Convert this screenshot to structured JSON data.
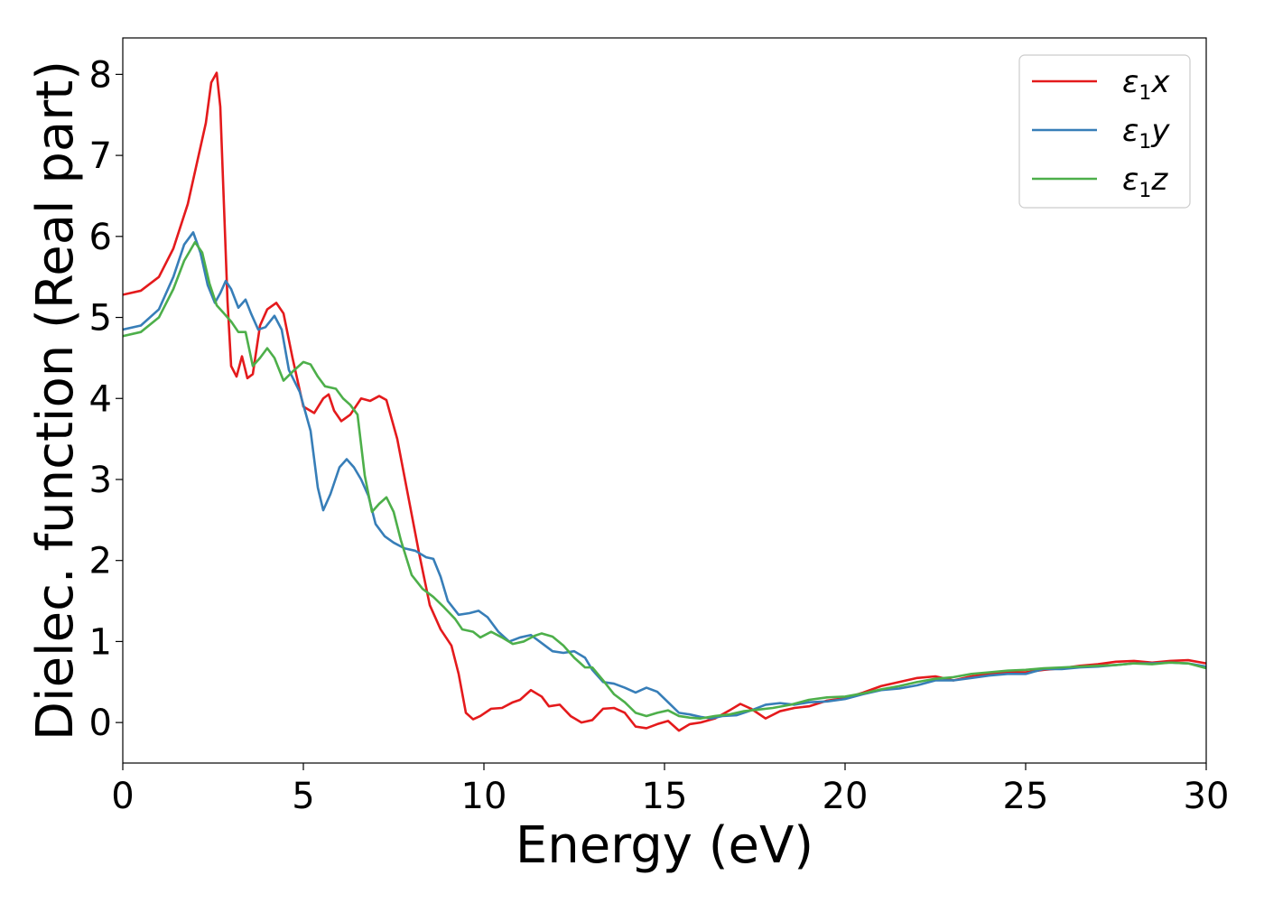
{
  "chart_data": {
    "type": "line",
    "xlabel": "Energy (eV)",
    "ylabel": "Dielec. function (Real part)",
    "xlim": [
      0,
      30
    ],
    "ylim": [
      -0.5,
      8.45
    ],
    "xticks": [
      0,
      5,
      10,
      15,
      20,
      25,
      30
    ],
    "yticks": [
      0,
      1,
      2,
      3,
      4,
      5,
      6,
      7,
      8
    ],
    "grid": false,
    "legend": {
      "placement": "top-right"
    },
    "series": [
      {
        "name": "ε1x",
        "legend_symbol": "ε",
        "legend_sub": "1",
        "legend_var": "x",
        "color": "#e41a1c",
        "points": [
          [
            0,
            5.28
          ],
          [
            0.5,
            5.33
          ],
          [
            1.0,
            5.5
          ],
          [
            1.4,
            5.85
          ],
          [
            1.8,
            6.4
          ],
          [
            2.1,
            7.0
          ],
          [
            2.3,
            7.4
          ],
          [
            2.45,
            7.9
          ],
          [
            2.6,
            8.02
          ],
          [
            2.7,
            7.6
          ],
          [
            2.8,
            6.4
          ],
          [
            2.9,
            5.2
          ],
          [
            3.0,
            4.4
          ],
          [
            3.15,
            4.27
          ],
          [
            3.3,
            4.52
          ],
          [
            3.45,
            4.25
          ],
          [
            3.6,
            4.3
          ],
          [
            3.8,
            4.9
          ],
          [
            4.0,
            5.1
          ],
          [
            4.25,
            5.18
          ],
          [
            4.45,
            5.05
          ],
          [
            4.7,
            4.5
          ],
          [
            5.0,
            3.9
          ],
          [
            5.3,
            3.82
          ],
          [
            5.55,
            4.0
          ],
          [
            5.7,
            4.05
          ],
          [
            5.85,
            3.85
          ],
          [
            6.05,
            3.72
          ],
          [
            6.3,
            3.8
          ],
          [
            6.6,
            4.0
          ],
          [
            6.85,
            3.97
          ],
          [
            7.1,
            4.03
          ],
          [
            7.3,
            3.98
          ],
          [
            7.6,
            3.5
          ],
          [
            7.9,
            2.8
          ],
          [
            8.2,
            2.1
          ],
          [
            8.5,
            1.45
          ],
          [
            8.8,
            1.15
          ],
          [
            9.1,
            0.95
          ],
          [
            9.3,
            0.6
          ],
          [
            9.5,
            0.12
          ],
          [
            9.7,
            0.04
          ],
          [
            9.9,
            0.08
          ],
          [
            10.2,
            0.17
          ],
          [
            10.5,
            0.18
          ],
          [
            10.8,
            0.25
          ],
          [
            11.0,
            0.28
          ],
          [
            11.3,
            0.4
          ],
          [
            11.6,
            0.32
          ],
          [
            11.8,
            0.2
          ],
          [
            12.1,
            0.22
          ],
          [
            12.4,
            0.08
          ],
          [
            12.7,
            0.0
          ],
          [
            13.0,
            0.03
          ],
          [
            13.3,
            0.17
          ],
          [
            13.6,
            0.18
          ],
          [
            13.9,
            0.12
          ],
          [
            14.2,
            -0.05
          ],
          [
            14.5,
            -0.07
          ],
          [
            14.8,
            -0.02
          ],
          [
            15.1,
            0.02
          ],
          [
            15.4,
            -0.1
          ],
          [
            15.7,
            -0.02
          ],
          [
            16.0,
            0.0
          ],
          [
            16.4,
            0.05
          ],
          [
            16.8,
            0.15
          ],
          [
            17.1,
            0.23
          ],
          [
            17.4,
            0.17
          ],
          [
            17.8,
            0.05
          ],
          [
            18.2,
            0.14
          ],
          [
            18.6,
            0.18
          ],
          [
            19.0,
            0.2
          ],
          [
            19.5,
            0.27
          ],
          [
            20.0,
            0.3
          ],
          [
            20.5,
            0.37
          ],
          [
            21.0,
            0.45
          ],
          [
            21.5,
            0.5
          ],
          [
            22.0,
            0.55
          ],
          [
            22.5,
            0.57
          ],
          [
            23.0,
            0.52
          ],
          [
            23.5,
            0.57
          ],
          [
            24.0,
            0.6
          ],
          [
            24.5,
            0.62
          ],
          [
            25.0,
            0.62
          ],
          [
            25.5,
            0.65
          ],
          [
            26.0,
            0.67
          ],
          [
            26.5,
            0.7
          ],
          [
            27.0,
            0.72
          ],
          [
            27.5,
            0.75
          ],
          [
            28.0,
            0.76
          ],
          [
            28.5,
            0.74
          ],
          [
            29.0,
            0.76
          ],
          [
            29.5,
            0.77
          ],
          [
            30.0,
            0.73
          ]
        ]
      },
      {
        "name": "ε1y",
        "legend_symbol": "ε",
        "legend_sub": "1",
        "legend_var": "y",
        "color": "#377eb8",
        "points": [
          [
            0,
            4.85
          ],
          [
            0.5,
            4.9
          ],
          [
            1.0,
            5.1
          ],
          [
            1.4,
            5.5
          ],
          [
            1.7,
            5.9
          ],
          [
            1.95,
            6.05
          ],
          [
            2.15,
            5.8
          ],
          [
            2.35,
            5.4
          ],
          [
            2.55,
            5.18
          ],
          [
            2.7,
            5.3
          ],
          [
            2.85,
            5.45
          ],
          [
            3.0,
            5.35
          ],
          [
            3.2,
            5.12
          ],
          [
            3.4,
            5.22
          ],
          [
            3.55,
            5.05
          ],
          [
            3.75,
            4.85
          ],
          [
            3.95,
            4.88
          ],
          [
            4.2,
            5.02
          ],
          [
            4.4,
            4.85
          ],
          [
            4.6,
            4.35
          ],
          [
            4.9,
            4.08
          ],
          [
            5.2,
            3.6
          ],
          [
            5.4,
            2.9
          ],
          [
            5.55,
            2.62
          ],
          [
            5.75,
            2.82
          ],
          [
            6.0,
            3.15
          ],
          [
            6.2,
            3.25
          ],
          [
            6.4,
            3.15
          ],
          [
            6.6,
            3.0
          ],
          [
            6.8,
            2.8
          ],
          [
            7.0,
            2.45
          ],
          [
            7.25,
            2.3
          ],
          [
            7.5,
            2.22
          ],
          [
            7.8,
            2.15
          ],
          [
            8.1,
            2.12
          ],
          [
            8.4,
            2.04
          ],
          [
            8.6,
            2.02
          ],
          [
            8.8,
            1.8
          ],
          [
            9.0,
            1.5
          ],
          [
            9.3,
            1.33
          ],
          [
            9.6,
            1.35
          ],
          [
            9.85,
            1.38
          ],
          [
            10.1,
            1.3
          ],
          [
            10.4,
            1.12
          ],
          [
            10.7,
            1.0
          ],
          [
            11.0,
            1.05
          ],
          [
            11.3,
            1.08
          ],
          [
            11.6,
            0.98
          ],
          [
            11.9,
            0.88
          ],
          [
            12.2,
            0.86
          ],
          [
            12.5,
            0.88
          ],
          [
            12.8,
            0.8
          ],
          [
            13.0,
            0.65
          ],
          [
            13.3,
            0.5
          ],
          [
            13.6,
            0.48
          ],
          [
            13.9,
            0.43
          ],
          [
            14.2,
            0.37
          ],
          [
            14.5,
            0.43
          ],
          [
            14.8,
            0.38
          ],
          [
            15.1,
            0.25
          ],
          [
            15.4,
            0.12
          ],
          [
            15.7,
            0.1
          ],
          [
            16.0,
            0.07
          ],
          [
            16.3,
            0.05
          ],
          [
            16.6,
            0.08
          ],
          [
            17.0,
            0.09
          ],
          [
            17.4,
            0.15
          ],
          [
            17.8,
            0.22
          ],
          [
            18.2,
            0.24
          ],
          [
            18.6,
            0.22
          ],
          [
            19.0,
            0.25
          ],
          [
            19.5,
            0.26
          ],
          [
            20.0,
            0.29
          ],
          [
            20.5,
            0.35
          ],
          [
            21.0,
            0.4
          ],
          [
            21.5,
            0.42
          ],
          [
            22.0,
            0.46
          ],
          [
            22.5,
            0.52
          ],
          [
            23.0,
            0.52
          ],
          [
            23.5,
            0.55
          ],
          [
            24.0,
            0.58
          ],
          [
            24.5,
            0.6
          ],
          [
            25.0,
            0.6
          ],
          [
            25.5,
            0.66
          ],
          [
            26.0,
            0.66
          ],
          [
            26.5,
            0.68
          ],
          [
            27.0,
            0.69
          ],
          [
            27.5,
            0.71
          ],
          [
            28.0,
            0.73
          ],
          [
            28.5,
            0.73
          ],
          [
            29.0,
            0.74
          ],
          [
            29.5,
            0.73
          ],
          [
            30.0,
            0.69
          ]
        ]
      },
      {
        "name": "ε1z",
        "legend_symbol": "ε",
        "legend_sub": "1",
        "legend_var": "z",
        "color": "#4daf4a",
        "points": [
          [
            0,
            4.77
          ],
          [
            0.5,
            4.82
          ],
          [
            1.0,
            5.0
          ],
          [
            1.4,
            5.35
          ],
          [
            1.7,
            5.7
          ],
          [
            2.0,
            5.93
          ],
          [
            2.2,
            5.8
          ],
          [
            2.4,
            5.42
          ],
          [
            2.6,
            5.15
          ],
          [
            2.8,
            5.05
          ],
          [
            3.0,
            4.95
          ],
          [
            3.2,
            4.82
          ],
          [
            3.4,
            4.82
          ],
          [
            3.6,
            4.4
          ],
          [
            3.8,
            4.5
          ],
          [
            4.0,
            4.62
          ],
          [
            4.2,
            4.5
          ],
          [
            4.45,
            4.22
          ],
          [
            4.7,
            4.33
          ],
          [
            5.0,
            4.45
          ],
          [
            5.2,
            4.42
          ],
          [
            5.4,
            4.27
          ],
          [
            5.6,
            4.15
          ],
          [
            5.9,
            4.12
          ],
          [
            6.1,
            4.0
          ],
          [
            6.3,
            3.92
          ],
          [
            6.5,
            3.8
          ],
          [
            6.7,
            3.05
          ],
          [
            6.9,
            2.6
          ],
          [
            7.1,
            2.7
          ],
          [
            7.3,
            2.78
          ],
          [
            7.5,
            2.6
          ],
          [
            7.7,
            2.25
          ],
          [
            8.0,
            1.82
          ],
          [
            8.3,
            1.65
          ],
          [
            8.6,
            1.55
          ],
          [
            8.9,
            1.42
          ],
          [
            9.2,
            1.28
          ],
          [
            9.4,
            1.15
          ],
          [
            9.7,
            1.12
          ],
          [
            9.9,
            1.05
          ],
          [
            10.2,
            1.12
          ],
          [
            10.5,
            1.05
          ],
          [
            10.8,
            0.97
          ],
          [
            11.1,
            1.0
          ],
          [
            11.4,
            1.07
          ],
          [
            11.6,
            1.1
          ],
          [
            11.9,
            1.06
          ],
          [
            12.2,
            0.95
          ],
          [
            12.5,
            0.8
          ],
          [
            12.8,
            0.68
          ],
          [
            13.0,
            0.68
          ],
          [
            13.3,
            0.52
          ],
          [
            13.6,
            0.35
          ],
          [
            13.9,
            0.25
          ],
          [
            14.2,
            0.12
          ],
          [
            14.5,
            0.08
          ],
          [
            14.8,
            0.12
          ],
          [
            15.1,
            0.15
          ],
          [
            15.4,
            0.08
          ],
          [
            15.7,
            0.06
          ],
          [
            16.0,
            0.05
          ],
          [
            16.4,
            0.08
          ],
          [
            16.8,
            0.1
          ],
          [
            17.2,
            0.14
          ],
          [
            17.6,
            0.16
          ],
          [
            18.0,
            0.18
          ],
          [
            18.5,
            0.22
          ],
          [
            19.0,
            0.28
          ],
          [
            19.5,
            0.31
          ],
          [
            20.0,
            0.32
          ],
          [
            20.5,
            0.36
          ],
          [
            21.0,
            0.41
          ],
          [
            21.5,
            0.45
          ],
          [
            22.0,
            0.5
          ],
          [
            22.5,
            0.54
          ],
          [
            23.0,
            0.56
          ],
          [
            23.5,
            0.6
          ],
          [
            24.0,
            0.62
          ],
          [
            24.5,
            0.64
          ],
          [
            25.0,
            0.65
          ],
          [
            25.5,
            0.67
          ],
          [
            26.0,
            0.68
          ],
          [
            26.5,
            0.69
          ],
          [
            27.0,
            0.7
          ],
          [
            27.5,
            0.71
          ],
          [
            28.0,
            0.73
          ],
          [
            28.5,
            0.72
          ],
          [
            29.0,
            0.74
          ],
          [
            29.5,
            0.73
          ],
          [
            30.0,
            0.67
          ]
        ]
      }
    ]
  }
}
